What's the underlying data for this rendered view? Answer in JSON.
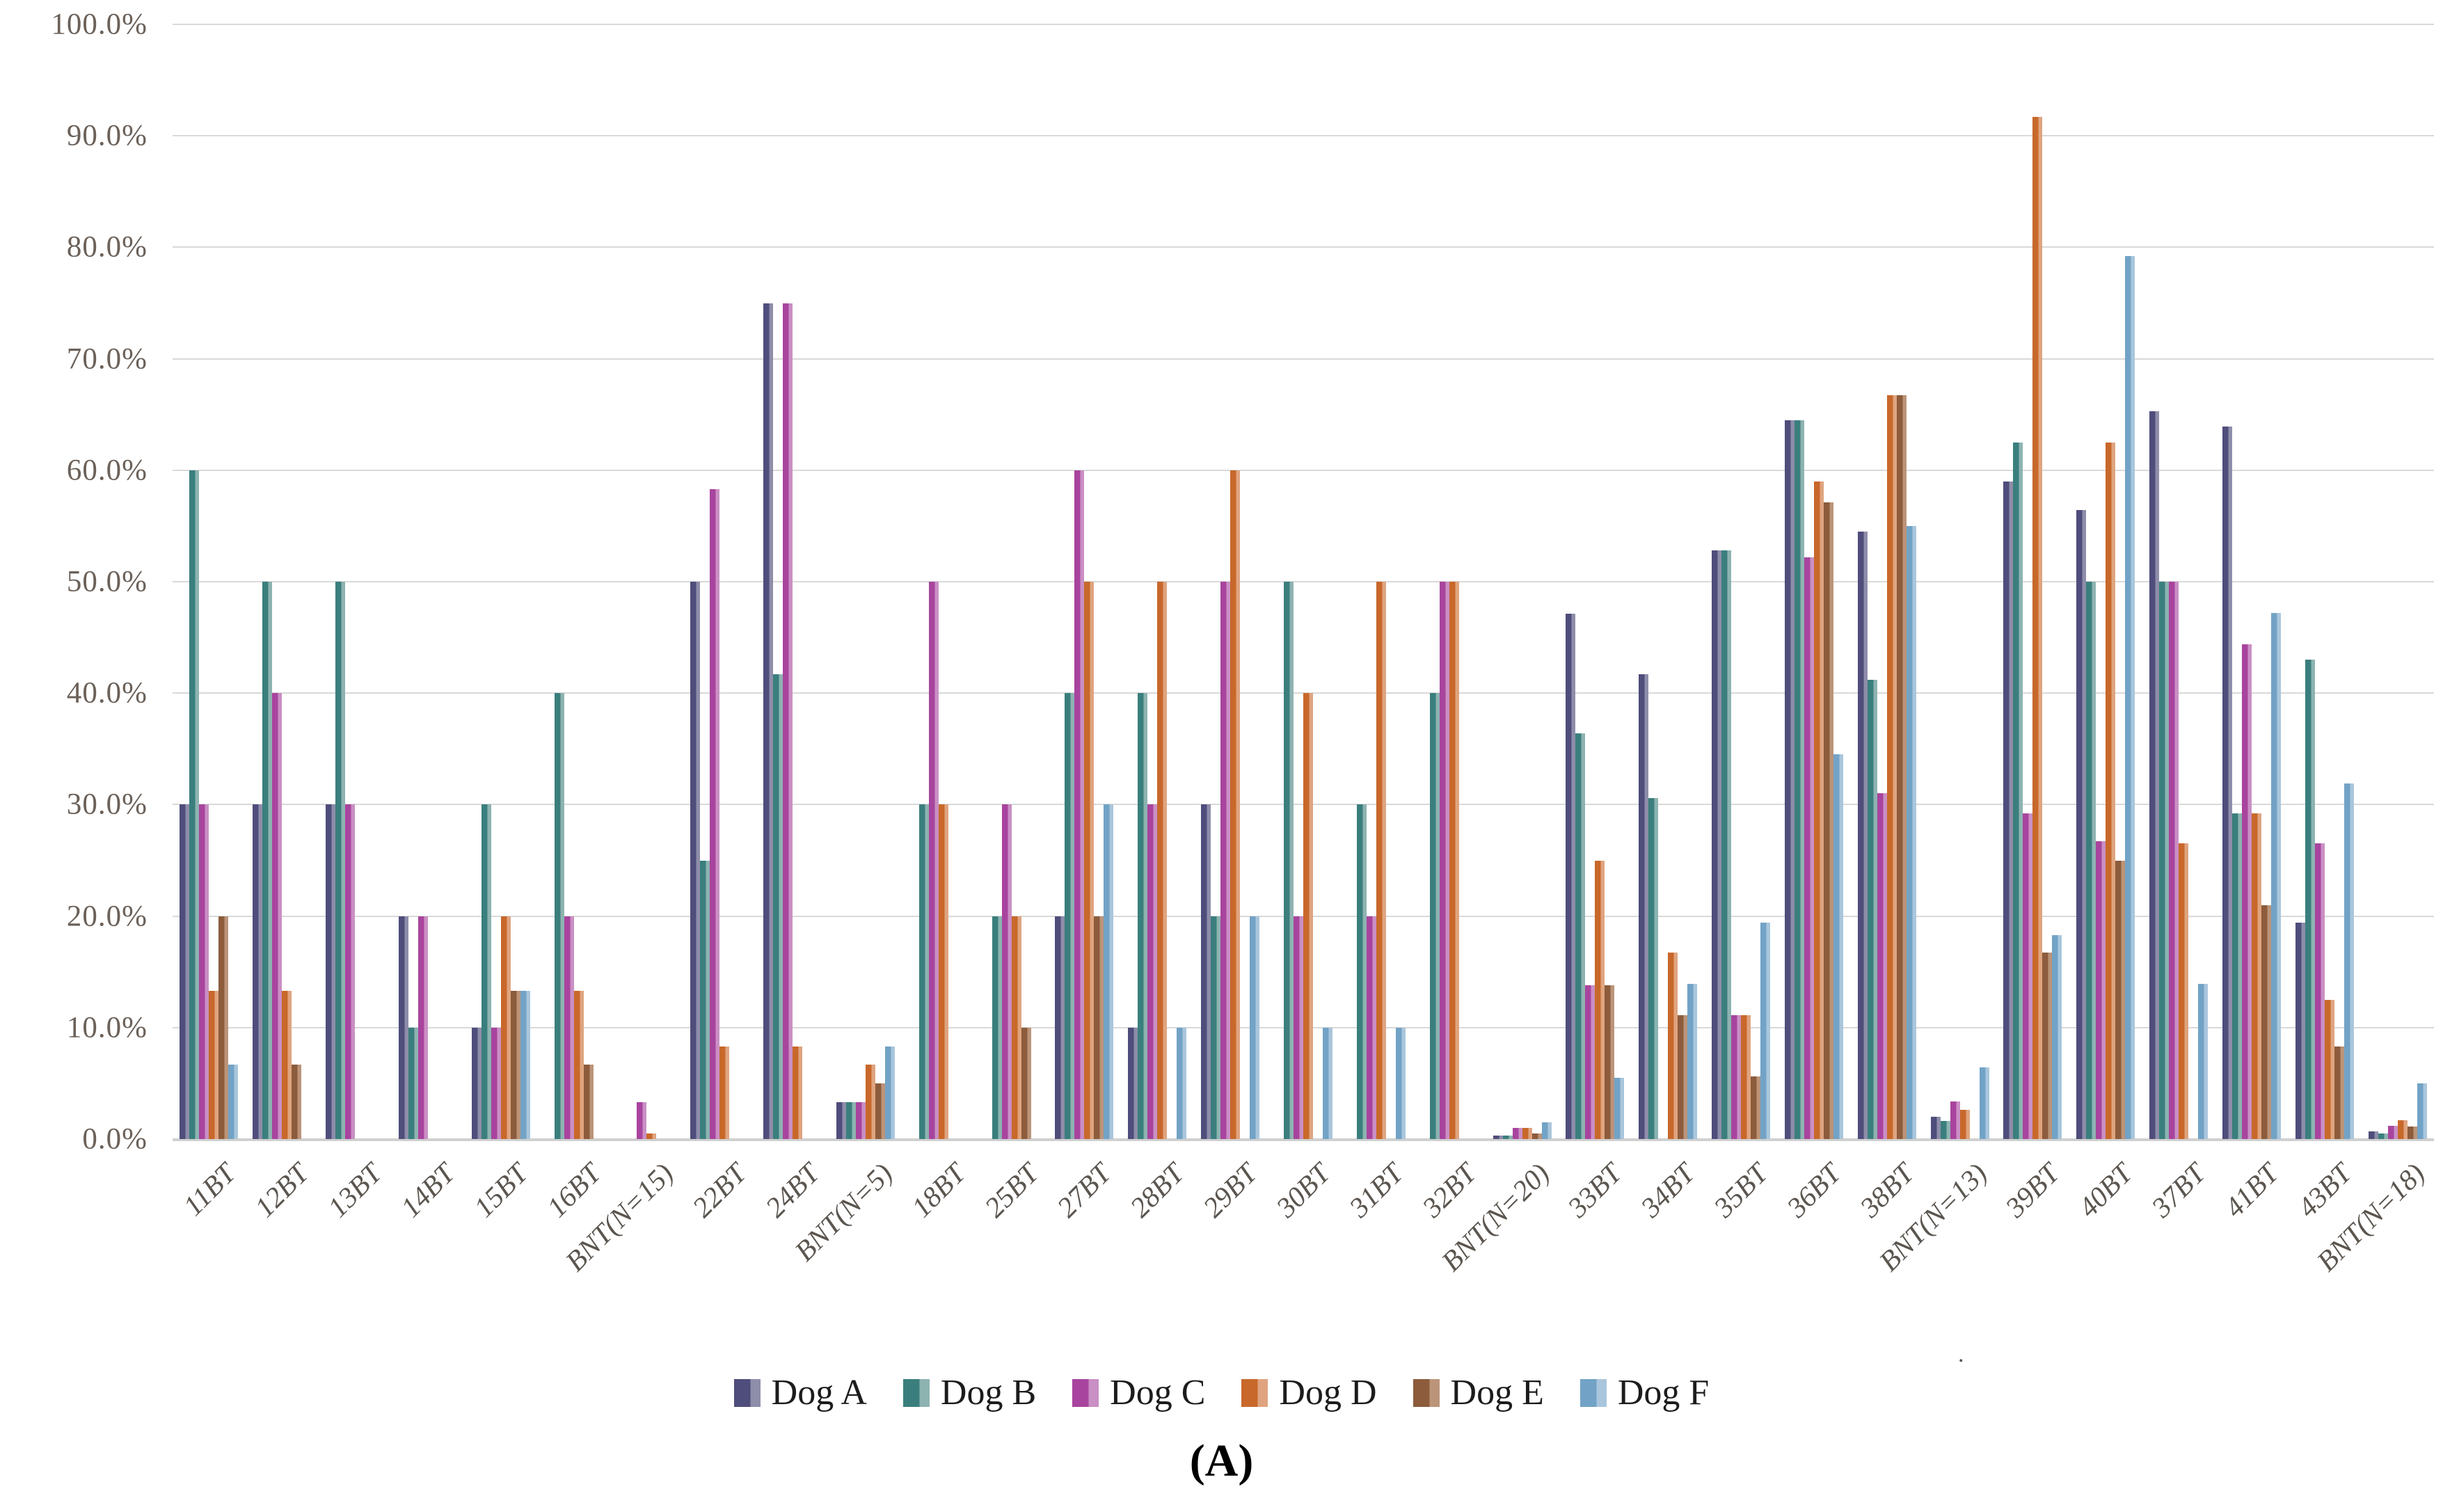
{
  "figure": {
    "caption": "(A)",
    "stray_mark": "."
  },
  "y_axis": {
    "tick_labels": [
      "0.0%",
      "10.0%",
      "20.0%",
      "30.0%",
      "40.0%",
      "50.0%",
      "60.0%",
      "70.0%",
      "80.0%",
      "90.0%",
      "100.0%"
    ],
    "min": 0,
    "max": 100,
    "step": 10
  },
  "legend": {
    "position": "bottom",
    "items": [
      {
        "label": "Dog A",
        "color": "#4f4d7b",
        "color_light": "#8e8daa"
      },
      {
        "label": "Dog B",
        "color": "#3a7f7d",
        "color_light": "#8db3b1"
      },
      {
        "label": "Dog C",
        "color": "#a8449e",
        "color_light": "#ca8fc4"
      },
      {
        "label": "Dog D",
        "color": "#c8682b",
        "color_light": "#dfa47f"
      },
      {
        "label": "Dog E",
        "color": "#8c5c3c",
        "color_light": "#bb9479"
      },
      {
        "label": "Dog F",
        "color": "#72a3c6",
        "color_light": "#a9c6dc"
      }
    ]
  },
  "chart_data": {
    "type": "bar",
    "title": "",
    "xlabel": "",
    "ylabel": "",
    "ylim": [
      0,
      100
    ],
    "grid": true,
    "legend_position": "bottom",
    "categories": [
      "11BT",
      "12BT",
      "13BT",
      "14BT",
      "15BT",
      "16BT",
      "BNT(N=15)",
      "22BT",
      "24BT",
      "BNT(N=5)",
      "18BT",
      "25BT",
      "27BT",
      "28BT",
      "29BT",
      "30BT",
      "31BT",
      "32BT",
      "BNT(N=20)",
      "33BT",
      "34BT",
      "35BT",
      "36BT",
      "38BT",
      "BNT(N=13)",
      "39BT",
      "40BT",
      "37BT",
      "41BT",
      "43BT",
      "BNT(N=18)"
    ],
    "series": [
      {
        "name": "Dog A",
        "color": "#4f4d7b",
        "color_light": "#8e8daa",
        "values": [
          30,
          30,
          30,
          20,
          10,
          0,
          0,
          50,
          75,
          3.3,
          0,
          0,
          20,
          10,
          30,
          0,
          0,
          0,
          0.3,
          47.1,
          41.7,
          52.8,
          64.5,
          54.5,
          2,
          59,
          56.4,
          65.3,
          63.9,
          19.4,
          0.7
        ]
      },
      {
        "name": "Dog B",
        "color": "#3a7f7d",
        "color_light": "#8db3b1",
        "values": [
          60,
          50,
          50,
          10,
          30,
          40,
          0,
          25,
          41.7,
          3.3,
          30,
          20,
          40,
          40,
          20,
          50,
          30,
          40,
          0.3,
          36.4,
          30.6,
          52.8,
          64.5,
          41.2,
          1.6,
          62.5,
          50,
          50,
          29.2,
          43,
          0.5
        ]
      },
      {
        "name": "Dog C",
        "color": "#a8449e",
        "color_light": "#ca8fc4",
        "values": [
          30,
          40,
          30,
          20,
          10,
          20,
          3.3,
          58.3,
          75,
          3.3,
          50,
          30,
          60,
          30,
          50,
          20,
          20,
          50,
          1,
          13.8,
          0,
          11.1,
          52.2,
          31,
          3.4,
          29.2,
          26.7,
          50,
          44.4,
          26.5,
          1.2
        ]
      },
      {
        "name": "Dog D",
        "color": "#c8682b",
        "color_light": "#dfa47f",
        "values": [
          13.3,
          13.3,
          0,
          0,
          20,
          13.3,
          0.5,
          8.3,
          8.3,
          6.7,
          30,
          20,
          50,
          50,
          60,
          40,
          50,
          50,
          1,
          25,
          16.7,
          11.1,
          59,
          66.7,
          2.6,
          91.7,
          62.5,
          26.5,
          29.2,
          12.5,
          1.7
        ]
      },
      {
        "name": "Dog E",
        "color": "#8c5c3c",
        "color_light": "#bb9479",
        "values": [
          20,
          6.7,
          0,
          0,
          13.3,
          6.7,
          0,
          0,
          0,
          5,
          0,
          10,
          20,
          0,
          0,
          0,
          0,
          0,
          0.5,
          13.8,
          11.1,
          5.6,
          57.1,
          66.7,
          0,
          16.7,
          25,
          0,
          21,
          8.3,
          1.1
        ]
      },
      {
        "name": "Dog F",
        "color": "#72a3c6",
        "color_light": "#a9c6dc",
        "values": [
          6.7,
          0,
          0,
          0,
          13.3,
          0,
          0,
          0,
          0,
          8.3,
          0,
          0,
          30,
          10,
          20,
          10,
          10,
          0,
          1.5,
          5.5,
          13.9,
          19.4,
          34.5,
          55,
          6.4,
          18.3,
          79.2,
          13.9,
          47.2,
          31.9,
          5
        ]
      }
    ]
  }
}
